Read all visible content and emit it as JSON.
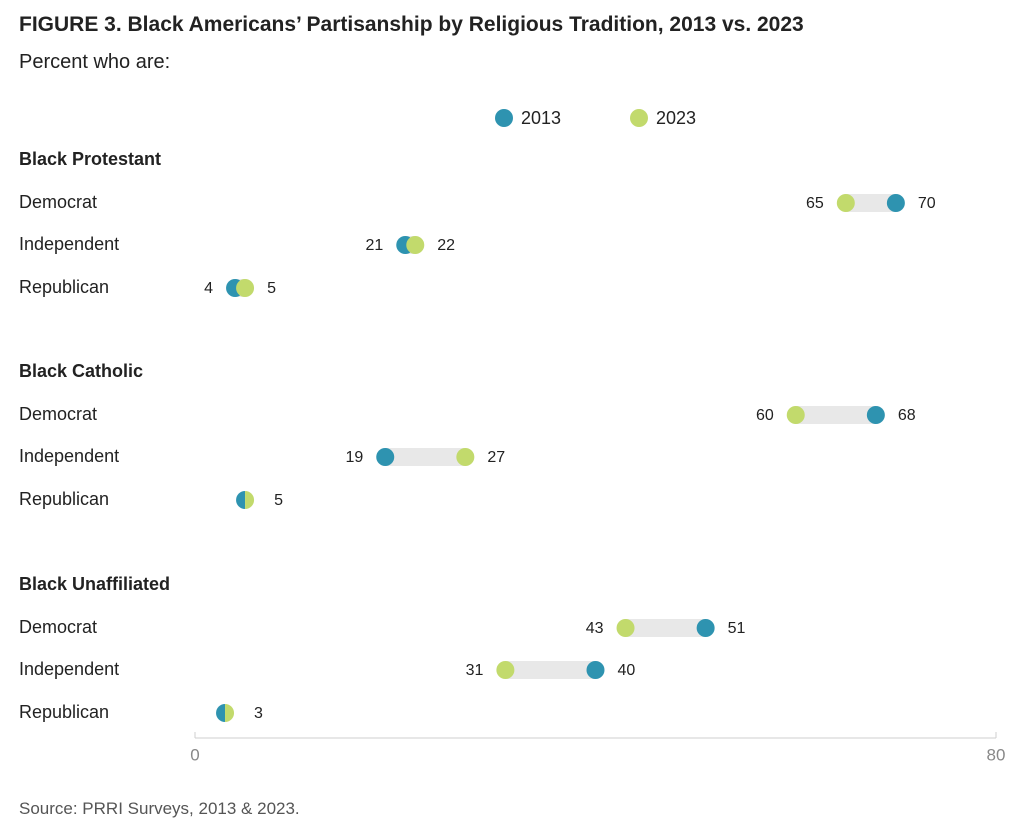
{
  "title": "FIGURE 3. Black Americans’ Partisanship by Religious Tradition, 2013 vs. 2023",
  "subtitle": "Percent who are:",
  "source": "Source: PRRI Surveys, 2013 & 2023.",
  "colors": {
    "y2013": "#2e93b0",
    "y2023": "#c2da6c",
    "connector": "#e8e8e8",
    "axis": "#cfcfcf"
  },
  "chart_data": {
    "type": "dumbbell",
    "xlim": [
      0,
      80
    ],
    "x_ticks": [
      "0",
      "80"
    ],
    "legend": [
      "2013",
      "2023"
    ],
    "legend_position": "top-center",
    "groups": [
      {
        "name": "Black Protestant",
        "rows": [
          {
            "label": "Democrat",
            "v2013": 70,
            "v2023": 65
          },
          {
            "label": "Independent",
            "v2013": 21,
            "v2023": 22
          },
          {
            "label": "Republican",
            "v2013": 4,
            "v2023": 5
          }
        ]
      },
      {
        "name": "Black Catholic",
        "rows": [
          {
            "label": "Democrat",
            "v2013": 68,
            "v2023": 60
          },
          {
            "label": "Independent",
            "v2013": 19,
            "v2023": 27
          },
          {
            "label": "Republican",
            "v2013": 5,
            "v2023": 5
          }
        ]
      },
      {
        "name": "Black Unaffiliated",
        "rows": [
          {
            "label": "Democrat",
            "v2013": 51,
            "v2023": 43
          },
          {
            "label": "Independent",
            "v2013": 40,
            "v2023": 31
          },
          {
            "label": "Republican",
            "v2013": 3,
            "v2023": 3
          }
        ]
      }
    ]
  }
}
